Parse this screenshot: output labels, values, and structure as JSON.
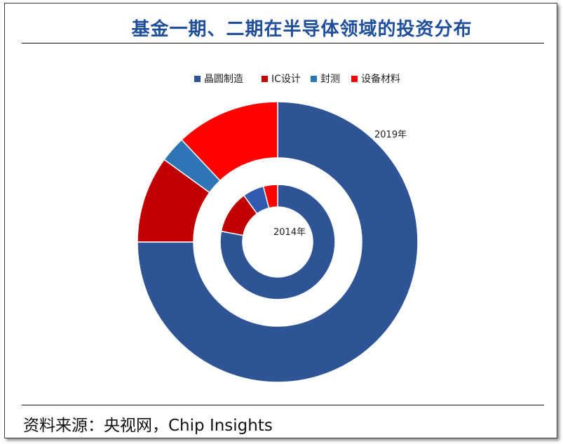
{
  "title": "基金一期、二期在半导体领域的投资分布",
  "source": "资料来源：央视网，Chip Insights",
  "chart_data": {
    "type": "pie",
    "variant": "nested-donut",
    "categories": [
      "晶圆制造",
      "IC设计",
      "封测",
      "设备材料"
    ],
    "colors": [
      "#2f5496",
      "#c00000",
      "#2e75b6",
      "#ff0000"
    ],
    "legend": "top",
    "rings": [
      {
        "name": "2014年",
        "values": [
          78.0,
          12.0,
          6.0,
          4.0
        ],
        "segment_colors": [
          "#2f5496",
          "#c00000",
          "#2f5ab0",
          "#ff0000"
        ]
      },
      {
        "name": "2019年",
        "values": [
          75.0,
          10.0,
          3.0,
          12.0
        ],
        "segment_colors": [
          "#2f5496",
          "#c00000",
          "#2e75b6",
          "#ff0000"
        ]
      }
    ]
  }
}
